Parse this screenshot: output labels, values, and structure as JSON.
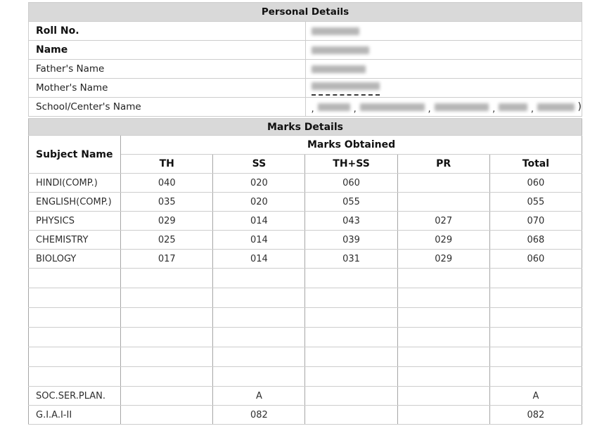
{
  "personal": {
    "title": "Personal Details",
    "labels": {
      "roll_no": "Roll No.",
      "name": "Name",
      "father": "Father's Name",
      "mother": "Mother's Name",
      "school": "School/Center's Name"
    },
    "school_value": {
      "comma": ",",
      "close_paren": ")"
    }
  },
  "marks": {
    "title": "Marks Details",
    "subject_header": "Subject Name",
    "group_header": "Marks Obtained",
    "columns": [
      "TH",
      "SS",
      "TH+SS",
      "PR",
      "Total"
    ],
    "rows": [
      {
        "subject": "HINDI(COMP.)",
        "th": "040",
        "ss": "020",
        "thss": "060",
        "pr": "",
        "total": "060"
      },
      {
        "subject": "ENGLISH(COMP.)",
        "th": "035",
        "ss": "020",
        "thss": "055",
        "pr": "",
        "total": "055"
      },
      {
        "subject": "PHYSICS",
        "th": "029",
        "ss": "014",
        "thss": "043",
        "pr": "027",
        "total": "070"
      },
      {
        "subject": "CHEMISTRY",
        "th": "025",
        "ss": "014",
        "thss": "039",
        "pr": "029",
        "total": "068"
      },
      {
        "subject": "BIOLOGY",
        "th": "017",
        "ss": "014",
        "thss": "031",
        "pr": "029",
        "total": "060"
      },
      {
        "subject": "",
        "th": "",
        "ss": "",
        "thss": "",
        "pr": "",
        "total": ""
      },
      {
        "subject": "",
        "th": "",
        "ss": "",
        "thss": "",
        "pr": "",
        "total": ""
      },
      {
        "subject": "",
        "th": "",
        "ss": "",
        "thss": "",
        "pr": "",
        "total": ""
      },
      {
        "subject": "",
        "th": "",
        "ss": "",
        "thss": "",
        "pr": "",
        "total": ""
      },
      {
        "subject": "",
        "th": "",
        "ss": "",
        "thss": "",
        "pr": "",
        "total": ""
      },
      {
        "subject": "",
        "th": "",
        "ss": "",
        "thss": "",
        "pr": "",
        "total": ""
      },
      {
        "subject": "SOC.SER.PLAN.",
        "th": "",
        "ss": "A",
        "thss": "",
        "pr": "",
        "total": "A"
      },
      {
        "subject": "G.I.A.I-II",
        "th": "",
        "ss": "082",
        "thss": "",
        "pr": "",
        "total": "082"
      }
    ]
  }
}
